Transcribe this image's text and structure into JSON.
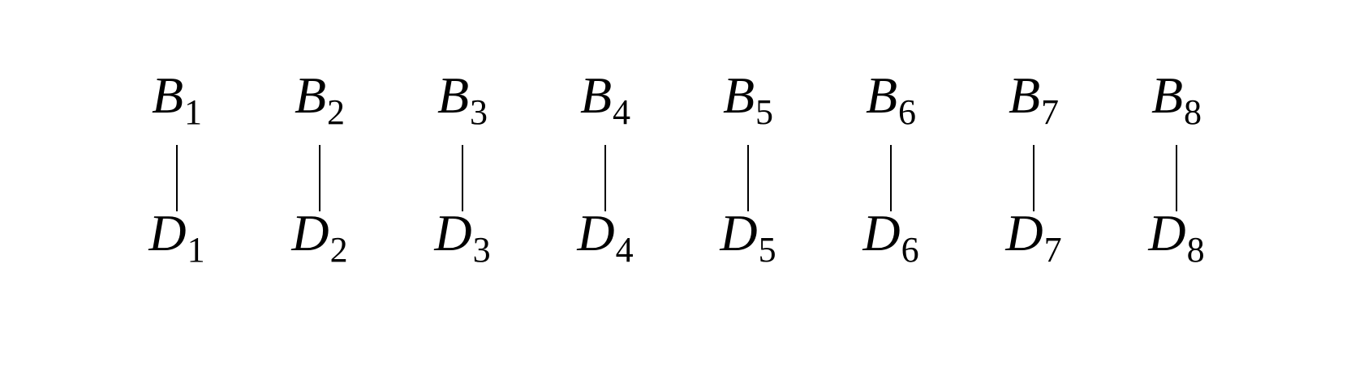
{
  "diagram": {
    "pairs": [
      {
        "top": {
          "base": "B",
          "sub": "1"
        },
        "bottom": {
          "base": "D",
          "sub": "1"
        }
      },
      {
        "top": {
          "base": "B",
          "sub": "2"
        },
        "bottom": {
          "base": "D",
          "sub": "2"
        }
      },
      {
        "top": {
          "base": "B",
          "sub": "3"
        },
        "bottom": {
          "base": "D",
          "sub": "3"
        }
      },
      {
        "top": {
          "base": "B",
          "sub": "4"
        },
        "bottom": {
          "base": "D",
          "sub": "4"
        }
      },
      {
        "top": {
          "base": "B",
          "sub": "5"
        },
        "bottom": {
          "base": "D",
          "sub": "5"
        }
      },
      {
        "top": {
          "base": "B",
          "sub": "6"
        },
        "bottom": {
          "base": "D",
          "sub": "6"
        }
      },
      {
        "top": {
          "base": "B",
          "sub": "7"
        },
        "bottom": {
          "base": "D",
          "sub": "7"
        }
      },
      {
        "top": {
          "base": "B",
          "sub": "8"
        },
        "bottom": {
          "base": "D",
          "sub": "8"
        }
      }
    ],
    "colors": {
      "ink": "#000000",
      "background": "#ffffff"
    }
  }
}
